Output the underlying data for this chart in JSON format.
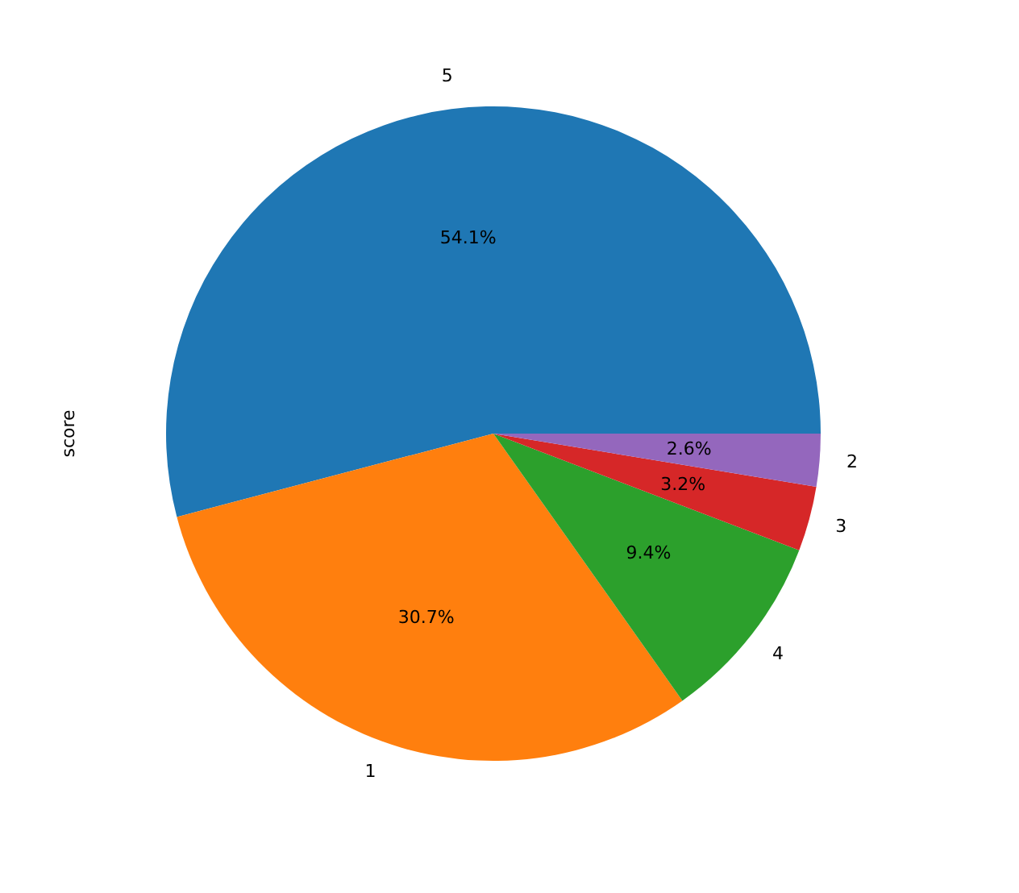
{
  "chart_data": {
    "type": "pie",
    "ylabel": "score",
    "categories": [
      "5",
      "1",
      "4",
      "3",
      "2"
    ],
    "values": [
      54.1,
      30.7,
      9.4,
      3.2,
      2.6
    ],
    "value_labels": [
      "54.1%",
      "30.7%",
      "9.4%",
      "3.2%",
      "2.6%"
    ],
    "colors": [
      "#1f77b4",
      "#ff7f0e",
      "#2ca02c",
      "#d62728",
      "#9467bd"
    ]
  }
}
